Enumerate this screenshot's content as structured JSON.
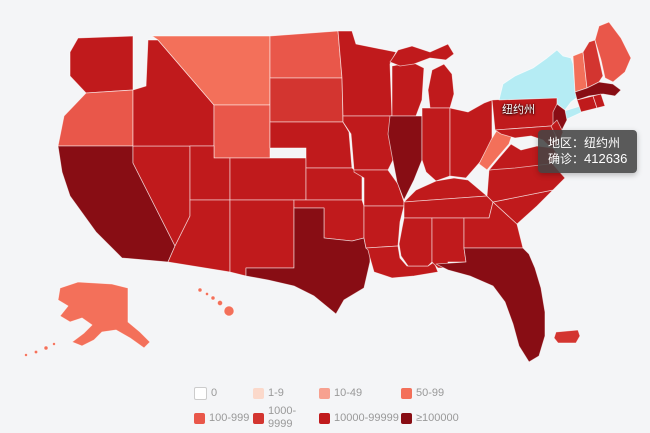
{
  "page": {
    "background": "#f4f5f7"
  },
  "legend": {
    "items": [
      {
        "label": "0",
        "color": "#ffffff",
        "border": "#cccccc"
      },
      {
        "label": "1-9",
        "color": "#fbd9cb",
        "border": "none"
      },
      {
        "label": "10-49",
        "color": "#f7a190",
        "border": "none"
      },
      {
        "label": "50-99",
        "color": "#f3705a",
        "border": "none"
      },
      {
        "label": "100-999",
        "color": "#e9574a",
        "border": "none"
      },
      {
        "label": "1000-9999",
        "color": "#d33530",
        "border": "none"
      },
      {
        "label": "10000-99999",
        "color": "#c01a1c",
        "border": "none"
      },
      {
        "label": "≥100000",
        "color": "#880d14",
        "border": "none"
      }
    ]
  },
  "tooltip": {
    "region_label": "地区：",
    "region_value": "纽约州",
    "confirmed_label": "确诊：",
    "confirmed_value": "412636"
  },
  "map": {
    "hover_label": "纽约州",
    "highlight_color": "#b5ecf4",
    "states": [
      {
        "id": "WA",
        "name": "Washington",
        "category": 6
      },
      {
        "id": "OR",
        "name": "Oregon",
        "category": 4
      },
      {
        "id": "CA",
        "name": "California",
        "category": 7
      },
      {
        "id": "NV",
        "name": "Nevada",
        "category": 6
      },
      {
        "id": "ID",
        "name": "Idaho",
        "category": 6
      },
      {
        "id": "MT",
        "name": "Montana",
        "category": 3
      },
      {
        "id": "WY",
        "name": "Wyoming",
        "category": 4
      },
      {
        "id": "UT",
        "name": "Utah",
        "category": 6
      },
      {
        "id": "CO",
        "name": "Colorado",
        "category": 6
      },
      {
        "id": "AZ",
        "name": "Arizona",
        "category": 6
      },
      {
        "id": "NM",
        "name": "New Mexico",
        "category": 6
      },
      {
        "id": "ND",
        "name": "North Dakota",
        "category": 4
      },
      {
        "id": "SD",
        "name": "South Dakota",
        "category": 5
      },
      {
        "id": "NE",
        "name": "Nebraska",
        "category": 6
      },
      {
        "id": "KS",
        "name": "Kansas",
        "category": 6
      },
      {
        "id": "OK",
        "name": "Oklahoma",
        "category": 6
      },
      {
        "id": "TX",
        "name": "Texas",
        "category": 7
      },
      {
        "id": "MN",
        "name": "Minnesota",
        "category": 6
      },
      {
        "id": "IA",
        "name": "Iowa",
        "category": 6
      },
      {
        "id": "MO",
        "name": "Missouri",
        "category": 6
      },
      {
        "id": "AR",
        "name": "Arkansas",
        "category": 6
      },
      {
        "id": "LA",
        "name": "Louisiana",
        "category": 6
      },
      {
        "id": "WI",
        "name": "Wisconsin",
        "category": 6
      },
      {
        "id": "MIUP",
        "name": "Michigan",
        "category": 6
      },
      {
        "id": "MI",
        "name": "Michigan",
        "category": 6
      },
      {
        "id": "IL",
        "name": "Illinois",
        "category": 7
      },
      {
        "id": "IN",
        "name": "Indiana",
        "category": 6
      },
      {
        "id": "OH",
        "name": "Ohio",
        "category": 6
      },
      {
        "id": "KY",
        "name": "Kentucky",
        "category": 6
      },
      {
        "id": "TN",
        "name": "Tennessee",
        "category": 6
      },
      {
        "id": "MS",
        "name": "Mississippi",
        "category": 6
      },
      {
        "id": "AL",
        "name": "Alabama",
        "category": 6
      },
      {
        "id": "GA",
        "name": "Georgia",
        "category": 6
      },
      {
        "id": "FL",
        "name": "Florida",
        "category": 7
      },
      {
        "id": "SC",
        "name": "South Carolina",
        "category": 6
      },
      {
        "id": "NC",
        "name": "North Carolina",
        "category": 6
      },
      {
        "id": "VA",
        "name": "Virginia",
        "category": 6
      },
      {
        "id": "WV",
        "name": "West Virginia",
        "category": 3
      },
      {
        "id": "PA",
        "name": "Pennsylvania",
        "category": 6
      },
      {
        "id": "NY",
        "name": "纽约州",
        "category": 7,
        "highlighted": true
      },
      {
        "id": "LI",
        "name": "纽约州",
        "category": 7,
        "highlighted": true
      },
      {
        "id": "NJ",
        "name": "New Jersey",
        "category": 7
      },
      {
        "id": "DE",
        "name": "Delaware",
        "category": 6
      },
      {
        "id": "MD",
        "name": "Maryland",
        "category": 6
      },
      {
        "id": "VT",
        "name": "Vermont",
        "category": 3
      },
      {
        "id": "NH",
        "name": "New Hampshire",
        "category": 5
      },
      {
        "id": "ME",
        "name": "Maine",
        "category": 4
      },
      {
        "id": "MA",
        "name": "Massachusetts",
        "category": 7
      },
      {
        "id": "CT",
        "name": "Connecticut",
        "category": 6
      },
      {
        "id": "RI",
        "name": "Rhode Island",
        "category": 6
      },
      {
        "id": "AK",
        "name": "Alaska",
        "category": 3
      },
      {
        "id": "HI",
        "name": "Hawaii",
        "category": 3
      },
      {
        "id": "PR",
        "name": "Puerto Rico",
        "category": 5
      }
    ]
  }
}
